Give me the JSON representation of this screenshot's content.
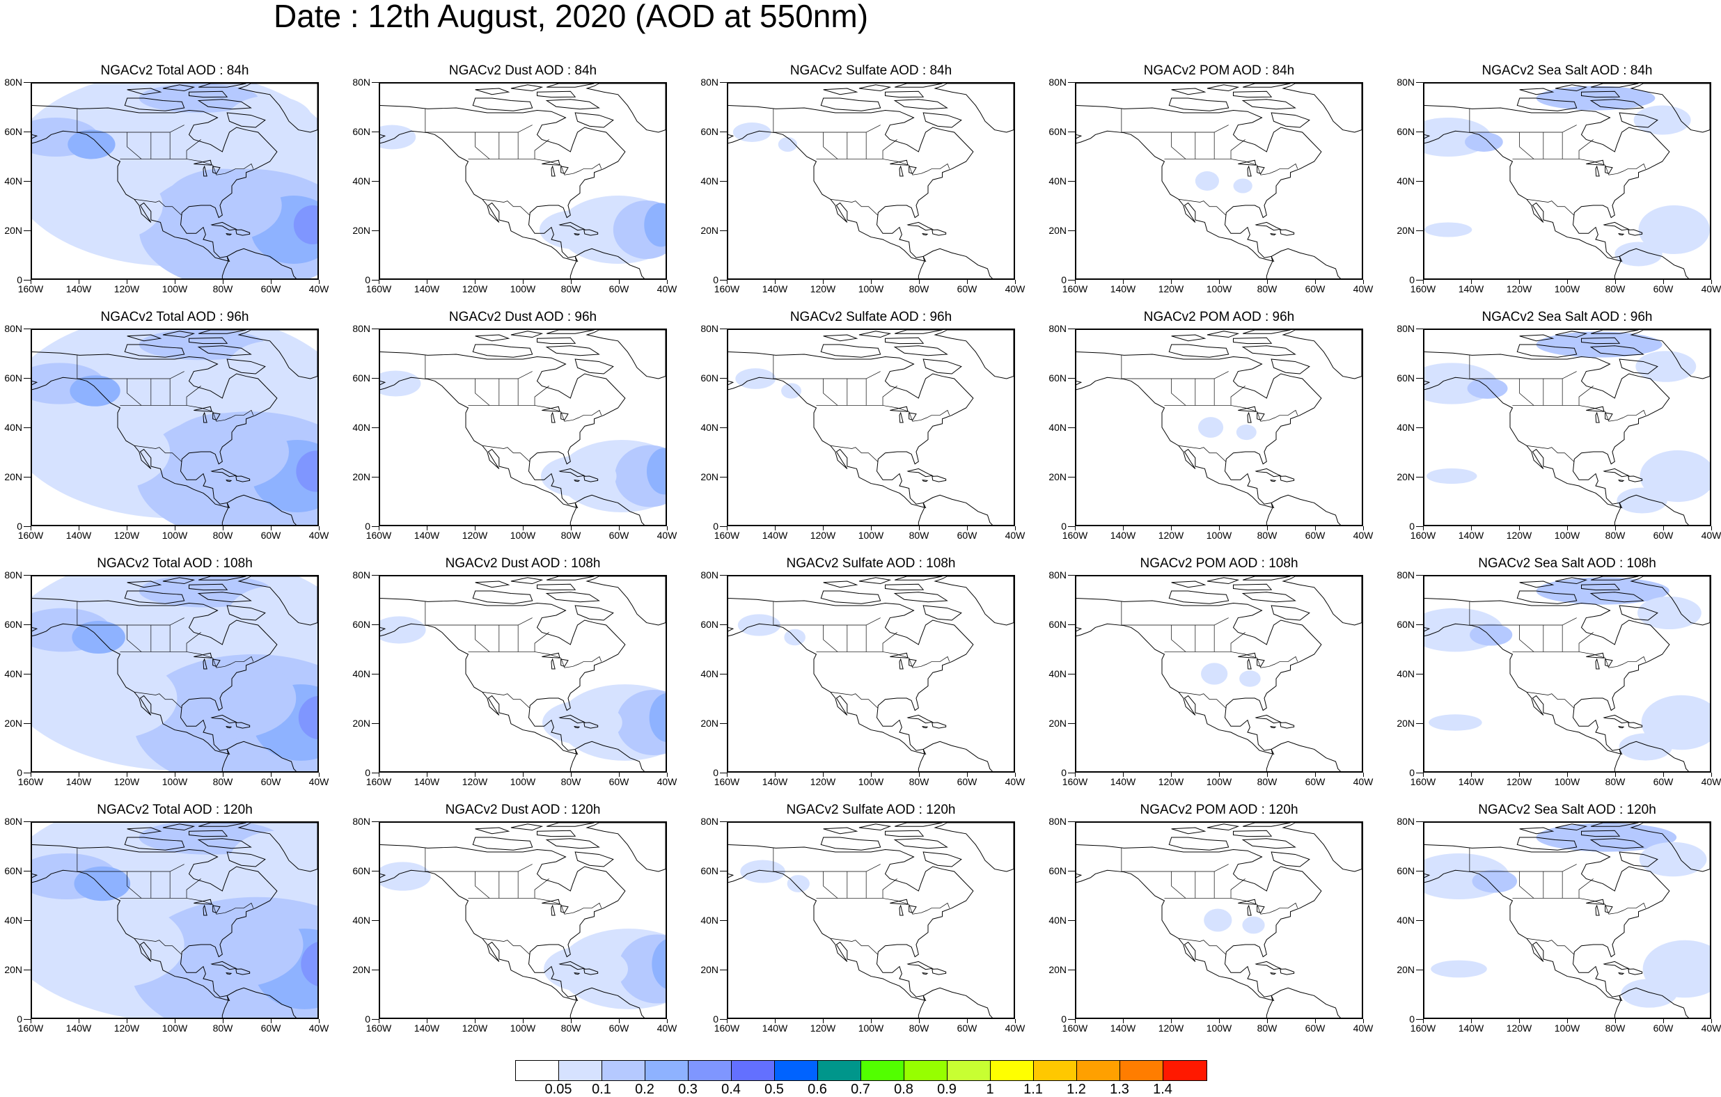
{
  "title": "Date : 12th August, 2020 (AOD at 550nm)",
  "axes": {
    "lat_labels": [
      "80N",
      "60N",
      "40N",
      "20N",
      "0"
    ],
    "lon_labels": [
      "160W",
      "140W",
      "120W",
      "100W",
      "80W",
      "60W",
      "40W"
    ]
  },
  "row_leads": [
    "84h",
    "96h",
    "108h",
    "120h"
  ],
  "species": [
    "Total",
    "Dust",
    "Sulfate",
    "POM",
    "Sea Salt"
  ],
  "panels": [
    {
      "title": "NGACv2 Total AOD : 84h",
      "species": "Total",
      "lead": "84h"
    },
    {
      "title": "NGACv2 Dust AOD : 84h",
      "species": "Dust",
      "lead": "84h"
    },
    {
      "title": "NGACv2 Sulfate AOD : 84h",
      "species": "Sulfate",
      "lead": "84h"
    },
    {
      "title": "NGACv2 POM AOD : 84h",
      "species": "POM",
      "lead": "84h"
    },
    {
      "title": "NGACv2 Sea Salt AOD : 84h",
      "species": "Sea Salt",
      "lead": "84h"
    },
    {
      "title": "NGACv2 Total AOD : 96h",
      "species": "Total",
      "lead": "96h"
    },
    {
      "title": "NGACv2 Dust AOD : 96h",
      "species": "Dust",
      "lead": "96h"
    },
    {
      "title": "NGACv2 Sulfate AOD : 96h",
      "species": "Sulfate",
      "lead": "96h"
    },
    {
      "title": "NGACv2 POM AOD : 96h",
      "species": "POM",
      "lead": "96h"
    },
    {
      "title": "NGACv2 Sea Salt AOD : 96h",
      "species": "Sea Salt",
      "lead": "96h"
    },
    {
      "title": "NGACv2 Total AOD : 108h",
      "species": "Total",
      "lead": "108h"
    },
    {
      "title": "NGACv2 Dust AOD : 108h",
      "species": "Dust",
      "lead": "108h"
    },
    {
      "title": "NGACv2 Sulfate AOD : 108h",
      "species": "Sulfate",
      "lead": "108h"
    },
    {
      "title": "NGACv2 POM AOD : 108h",
      "species": "POM",
      "lead": "108h"
    },
    {
      "title": "NGACv2 Sea Salt AOD : 108h",
      "species": "Sea Salt",
      "lead": "108h"
    },
    {
      "title": "NGACv2 Total AOD : 120h",
      "species": "Total",
      "lead": "120h"
    },
    {
      "title": "NGACv2 Dust AOD : 120h",
      "species": "Dust",
      "lead": "120h"
    },
    {
      "title": "NGACv2 Sulfate AOD : 120h",
      "species": "Sulfate",
      "lead": "120h"
    },
    {
      "title": "NGACv2 POM AOD : 120h",
      "species": "POM",
      "lead": "120h"
    },
    {
      "title": "NGACv2 Sea Salt  AOD : 120h",
      "species": "Sea Salt",
      "lead": "120h"
    }
  ],
  "colorbar": {
    "labels": [
      "0.05",
      "0.1",
      "0.2",
      "0.3",
      "0.4",
      "0.5",
      "0.6",
      "0.7",
      "0.8",
      "0.9",
      "1",
      "1.1",
      "1.2",
      "1.3",
      "1.4"
    ],
    "colors": [
      "#ffffff",
      "#d6e2ff",
      "#b5c9ff",
      "#8eb2ff",
      "#7f96ff",
      "#6370ff",
      "#0063ff",
      "#00968b",
      "#52ff00",
      "#96ff00",
      "#c8ff32",
      "#ffff00",
      "#ffc800",
      "#ffa000",
      "#ff7d00",
      "#ff1900"
    ]
  }
}
